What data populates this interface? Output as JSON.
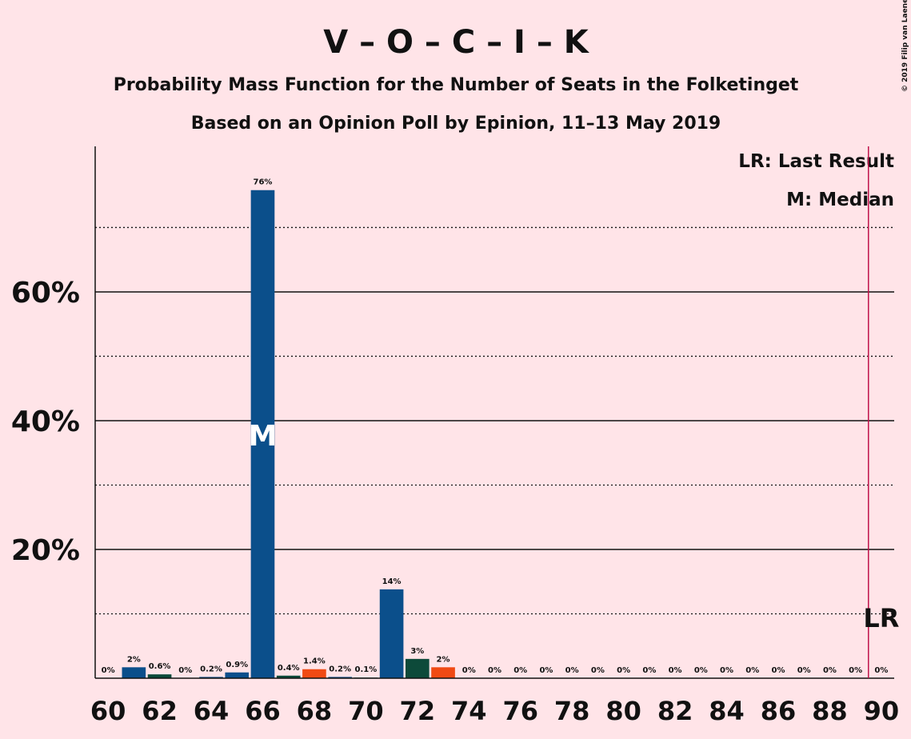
{
  "chart_data": {
    "type": "bar",
    "title": "V – O – C – I – K",
    "subtitle": "Probability Mass Function for the Number of Seats in the Folketinget",
    "subtitle2": "Based on an Opinion Poll by Epinion, 11–13 May 2019",
    "credit": "© 2019 Filip van Laenen",
    "x": [
      60,
      61,
      62,
      63,
      64,
      65,
      66,
      67,
      68,
      69,
      70,
      71,
      72,
      73,
      74,
      75,
      76,
      77,
      78,
      79,
      80,
      81,
      82,
      83,
      84,
      85,
      86,
      87,
      88,
      89,
      90
    ],
    "values": [
      0,
      1.7,
      0.6,
      0,
      0.2,
      0.9,
      75.8,
      0.4,
      1.4,
      0.2,
      0.1,
      13.8,
      3.0,
      1.7,
      0,
      0,
      0,
      0,
      0,
      0,
      0,
      0,
      0,
      0,
      0,
      0,
      0,
      0,
      0,
      0,
      0
    ],
    "value_labels": [
      "0%",
      "2%",
      "0.6%",
      "0%",
      "0.2%",
      "0.9%",
      "76%",
      "0.4%",
      "1.4%",
      "0.2%",
      "0.1%",
      "14%",
      "3%",
      "2%",
      "0%",
      "0%",
      "0%",
      "0%",
      "0%",
      "0%",
      "0%",
      "0%",
      "0%",
      "0%",
      "0%",
      "0%",
      "0%",
      "0%",
      "0%",
      "0%",
      "0%"
    ],
    "colors": [
      "#0b4f8b",
      "#0b4f8b",
      "#0d4a3a",
      "#f04a14",
      "#0b4f8b",
      "#0b4f8b",
      "#0b4f8b",
      "#0d4a3a",
      "#f04a14",
      "#0b4f8b",
      "#0d4a3a",
      "#0b4f8b",
      "#0d4a3a",
      "#f04a14",
      "#0b4f8b",
      "#0b4f8b",
      "#0b4f8b",
      "#0b4f8b",
      "#0b4f8b",
      "#0b4f8b",
      "#0b4f8b",
      "#0b4f8b",
      "#0b4f8b",
      "#0b4f8b",
      "#0b4f8b",
      "#0b4f8b",
      "#0b4f8b",
      "#0b4f8b",
      "#0b4f8b",
      "#0b4f8b",
      "#0b4f8b"
    ],
    "xlim": [
      59.5,
      90.5
    ],
    "xticks": [
      60,
      62,
      64,
      66,
      68,
      70,
      72,
      74,
      76,
      78,
      80,
      82,
      84,
      86,
      88,
      90
    ],
    "ylim": [
      0,
      82.6
    ],
    "yticks": [
      {
        "value": 20,
        "label": "20%"
      },
      {
        "value": 40,
        "label": "40%"
      },
      {
        "value": 60,
        "label": "60%"
      }
    ],
    "minor_yticks": [
      10,
      30,
      50,
      70
    ],
    "median": 66,
    "median_label": "M",
    "last_result": 90,
    "last_result_label": "LR",
    "last_result_color": "#c0124a",
    "legend": [
      "LR: Last Result",
      "M: Median"
    ]
  }
}
